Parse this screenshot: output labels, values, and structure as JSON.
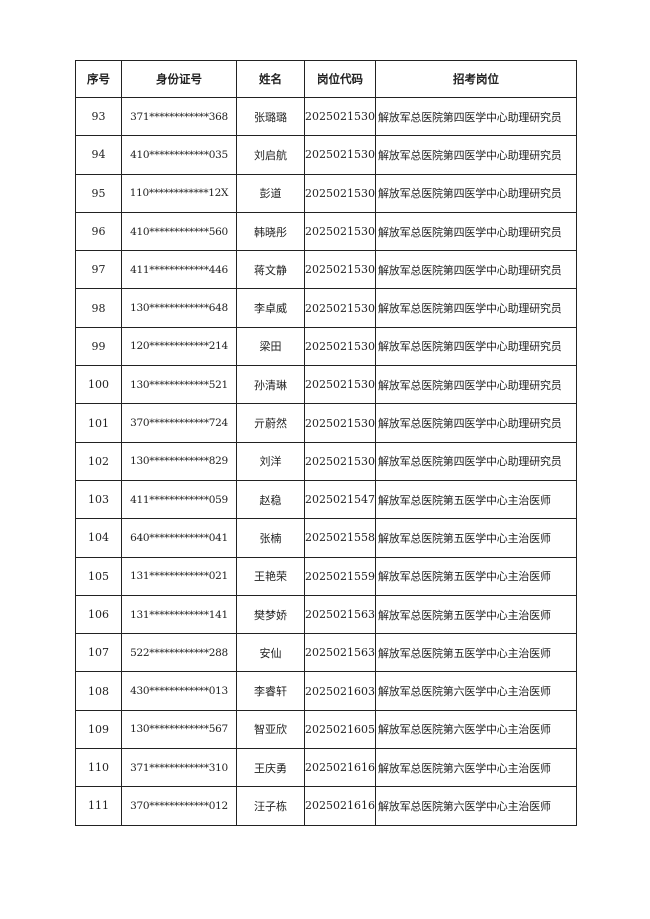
{
  "table": {
    "headers": [
      "序号",
      "身份证号",
      "姓名",
      "岗位代码",
      "招考岗位"
    ],
    "rows": [
      [
        "93",
        "371************368",
        "张璐璐",
        "2025021530",
        "解放军总医院第四医学中心助理研究员"
      ],
      [
        "94",
        "410************035",
        "刘启航",
        "2025021530",
        "解放军总医院第四医学中心助理研究员"
      ],
      [
        "95",
        "110************12X",
        "彭道",
        "2025021530",
        "解放军总医院第四医学中心助理研究员"
      ],
      [
        "96",
        "410************560",
        "韩晓彤",
        "2025021530",
        "解放军总医院第四医学中心助理研究员"
      ],
      [
        "97",
        "411************446",
        "蒋文静",
        "2025021530",
        "解放军总医院第四医学中心助理研究员"
      ],
      [
        "98",
        "130************648",
        "李卓威",
        "2025021530",
        "解放军总医院第四医学中心助理研究员"
      ],
      [
        "99",
        "120************214",
        "梁田",
        "2025021530",
        "解放军总医院第四医学中心助理研究员"
      ],
      [
        "100",
        "130************521",
        "孙清琳",
        "2025021530",
        "解放军总医院第四医学中心助理研究员"
      ],
      [
        "101",
        "370************724",
        "亓蔚然",
        "2025021530",
        "解放军总医院第四医学中心助理研究员"
      ],
      [
        "102",
        "130************829",
        "刘洋",
        "2025021530",
        "解放军总医院第四医学中心助理研究员"
      ],
      [
        "103",
        "411************059",
        "赵稳",
        "2025021547",
        "解放军总医院第五医学中心主治医师"
      ],
      [
        "104",
        "640************041",
        "张楠",
        "2025021558",
        "解放军总医院第五医学中心主治医师"
      ],
      [
        "105",
        "131************021",
        "王艳荣",
        "2025021559",
        "解放军总医院第五医学中心主治医师"
      ],
      [
        "106",
        "131************141",
        "樊梦娇",
        "2025021563",
        "解放军总医院第五医学中心主治医师"
      ],
      [
        "107",
        "522************288",
        "安仙",
        "2025021563",
        "解放军总医院第五医学中心主治医师"
      ],
      [
        "108",
        "430************013",
        "李睿轩",
        "2025021603",
        "解放军总医院第六医学中心主治医师"
      ],
      [
        "109",
        "130************567",
        "智亚欣",
        "2025021605",
        "解放军总医院第六医学中心主治医师"
      ],
      [
        "110",
        "371************310",
        "王庆勇",
        "2025021616",
        "解放军总医院第六医学中心主治医师"
      ],
      [
        "111",
        "370************012",
        "汪子栋",
        "2025021616",
        "解放军总医院第六医学中心主治医师"
      ]
    ]
  }
}
